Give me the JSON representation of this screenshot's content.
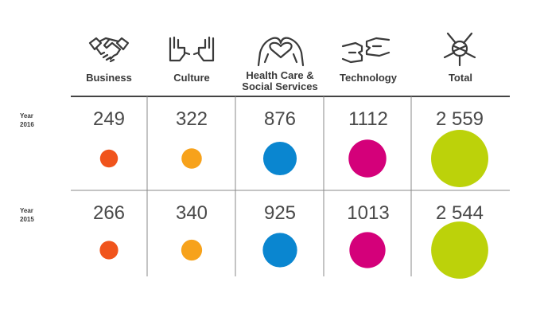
{
  "chart_data": {
    "type": "bubble-table",
    "categories": [
      "Business",
      "Culture",
      "Health Care &\nSocial Services",
      "Technology",
      "Total"
    ],
    "icons": [
      "handshake-icon",
      "hands-icon",
      "heart-hands-icon",
      "puzzle-hands-icon",
      "stacked-hands-icon"
    ],
    "colors": [
      "#f0541c",
      "#f7a21b",
      "#0a86d0",
      "#d4007a",
      "#bcd20a"
    ],
    "rows": [
      {
        "year_prefix": "Year",
        "year": "2016",
        "value_labels": [
          "249",
          "322",
          "876",
          "1112",
          "2 559"
        ],
        "values": [
          249,
          322,
          876,
          1112,
          2559
        ]
      },
      {
        "year_prefix": "Year",
        "year": "2015",
        "value_labels": [
          "266",
          "340",
          "925",
          "1013",
          "2 544"
        ],
        "values": [
          266,
          340,
          925,
          1013,
          2544
        ]
      }
    ]
  }
}
